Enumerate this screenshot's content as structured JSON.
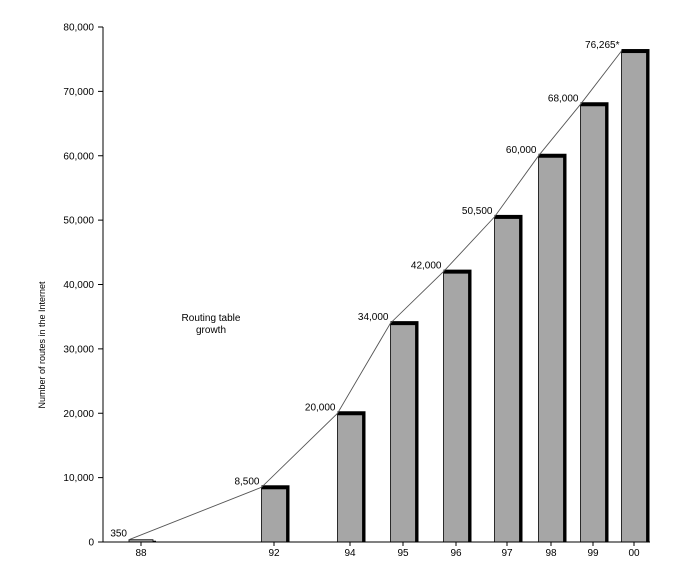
{
  "chart_data": {
    "type": "bar",
    "title": "",
    "xlabel": "",
    "ylabel": "Number of routes in the Internet",
    "ylim": [
      0,
      80000
    ],
    "yticks": [
      "0",
      "10,000",
      "20,000",
      "30,000",
      "40,000",
      "50,000",
      "60,000",
      "70,000",
      "80,000"
    ],
    "ytick_values": [
      0,
      10000,
      20000,
      30000,
      40000,
      50000,
      60000,
      70000,
      80000
    ],
    "categories": [
      "88",
      "92",
      "94",
      "95",
      "96",
      "97",
      "98",
      "99",
      "00"
    ],
    "values": [
      350,
      8500,
      20000,
      34000,
      42000,
      50500,
      60000,
      68000,
      76265
    ],
    "value_labels": [
      "350",
      "8,500",
      "20,000",
      "34,000",
      "42,000",
      "50,500",
      "60,000",
      "68,000",
      "76,265*"
    ],
    "annotation_lines": [
      "Routing table",
      "growth"
    ],
    "grid": false,
    "legend": "none",
    "colors": {
      "bar": "#a6a6a6",
      "bar_edge": "#000000",
      "trend_line": "#555555"
    }
  }
}
